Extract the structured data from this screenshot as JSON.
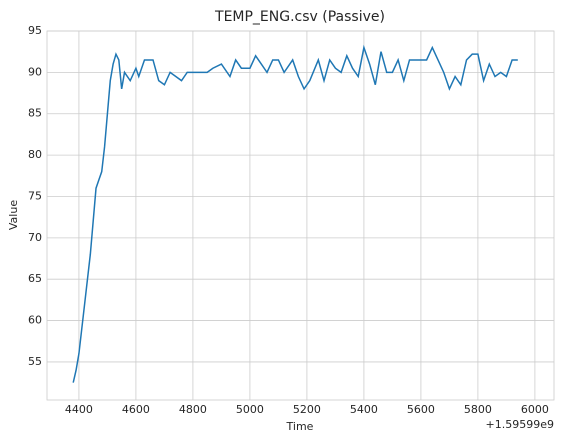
{
  "chart_data": {
    "type": "line",
    "title": "TEMP_ENG.csv (Passive)",
    "x_label": "Time",
    "y_label": "Value",
    "offset_label": "+1.59599e9",
    "x": [
      4380,
      4390,
      4400,
      4410,
      4420,
      4430,
      4440,
      4450,
      4460,
      4470,
      4480,
      4490,
      4500,
      4510,
      4520,
      4530,
      4540,
      4550,
      4560,
      4580,
      4600,
      4610,
      4630,
      4660,
      4680,
      4700,
      4720,
      4740,
      4760,
      4780,
      4800,
      4850,
      4870,
      4900,
      4930,
      4950,
      4970,
      5000,
      5020,
      5040,
      5060,
      5080,
      5100,
      5120,
      5150,
      5170,
      5190,
      5210,
      5240,
      5260,
      5280,
      5300,
      5320,
      5340,
      5360,
      5380,
      5400,
      5420,
      5440,
      5460,
      5480,
      5500,
      5520,
      5540,
      5560,
      5580,
      5600,
      5620,
      5640,
      5660,
      5680,
      5700,
      5720,
      5740,
      5760,
      5780,
      5800,
      5820,
      5840,
      5860,
      5880,
      5900,
      5920,
      5940
    ],
    "series": [
      {
        "name": "TEMP_ENG",
        "color": "#1f77b4",
        "values": [
          52.5,
          54,
          56,
          59,
          62,
          65,
          68,
          72,
          76,
          77,
          78,
          81,
          85,
          89,
          91,
          92.2,
          91.5,
          88,
          90,
          89,
          90.5,
          89.5,
          91.5,
          91.5,
          89,
          88.5,
          90,
          89.5,
          89,
          90,
          90,
          90,
          90.5,
          91,
          89.5,
          91.5,
          90.5,
          90.5,
          92,
          91,
          90,
          91.5,
          91.5,
          90,
          91.5,
          89.5,
          88,
          89,
          91.5,
          89,
          91.5,
          90.5,
          90,
          92,
          90.5,
          89.5,
          93,
          91,
          88.5,
          92.5,
          90,
          90,
          91.5,
          89,
          91.5,
          91.5,
          91.5,
          91.5,
          93,
          91.5,
          90,
          88,
          89.5,
          88.5,
          91.5,
          92.2,
          92.2,
          89,
          91,
          89.5,
          90,
          89.5,
          91.5,
          91.5
        ]
      }
    ],
    "xlim": [
      4288,
      6067
    ],
    "ylim": [
      50.4,
      95
    ],
    "xticks": [
      4400,
      4600,
      4800,
      5000,
      5200,
      5400,
      5600,
      5800,
      6000
    ],
    "yticks": [
      55,
      60,
      65,
      70,
      75,
      80,
      85,
      90,
      95
    ],
    "grid": true
  }
}
